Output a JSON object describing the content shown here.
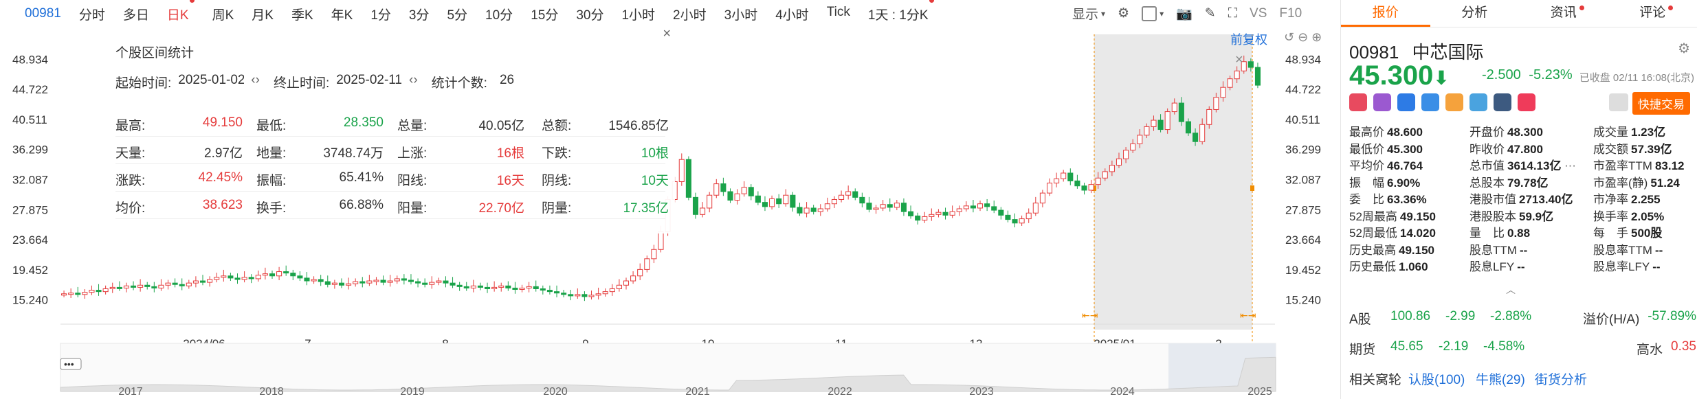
{
  "toolbar": {
    "code": "00981",
    "items": [
      "分时",
      "多日",
      "日K",
      "周K",
      "月K",
      "季K",
      "年K",
      "1分",
      "3分",
      "5分",
      "10分",
      "15分",
      "30分",
      "1小时",
      "2小时",
      "3小时",
      "4小时",
      "Tick",
      "1天 : 1分K"
    ],
    "active_index": 2,
    "display": "显示",
    "vs": "VS",
    "f10": "F10"
  },
  "popup": {
    "title": "个股区间统计",
    "start_label": "起始时间:",
    "start_value": "2025-01-02",
    "end_label": "终止时间:",
    "end_value": "2025-02-11",
    "count_label": "统计个数:",
    "count_value": "26",
    "rows": [
      [
        {
          "l": "最高:",
          "v": "49.150",
          "c": "red"
        },
        {
          "l": "最低:",
          "v": "28.350",
          "c": "green"
        },
        {
          "l": "总量:",
          "v": "40.05亿",
          "c": ""
        },
        {
          "l": "总额:",
          "v": "1546.85亿",
          "c": ""
        }
      ],
      [
        {
          "l": "天量:",
          "v": "2.97亿",
          "c": ""
        },
        {
          "l": "地量:",
          "v": "3748.74万",
          "c": ""
        },
        {
          "l": "上涨:",
          "v": "16根",
          "c": "red"
        },
        {
          "l": "下跌:",
          "v": "10根",
          "c": "green"
        }
      ],
      [
        {
          "l": "涨跌:",
          "v": "42.45%",
          "c": "red"
        },
        {
          "l": "振幅:",
          "v": "65.41%",
          "c": ""
        },
        {
          "l": "阳线:",
          "v": "16天",
          "c": "red"
        },
        {
          "l": "阴线:",
          "v": "10天",
          "c": "green"
        }
      ],
      [
        {
          "l": "均价:",
          "v": "38.623",
          "c": "red"
        },
        {
          "l": "换手:",
          "v": "66.88%",
          "c": ""
        },
        {
          "l": "阳量:",
          "v": "22.70亿",
          "c": "red"
        },
        {
          "l": "阴量:",
          "v": "17.35亿",
          "c": "green"
        }
      ]
    ]
  },
  "chart_labels": {
    "adjust": "前复权",
    "close_x": "×"
  },
  "chart_data": {
    "type": "candlestick",
    "y_ticks": [
      15.24,
      19.452,
      23.664,
      27.875,
      32.087,
      36.299,
      40.511,
      44.722,
      48.934
    ],
    "x_labels": [
      "2024/06",
      "7",
      "8",
      "9",
      "10",
      "11",
      "12",
      "2025/01",
      "2"
    ],
    "overview_years": [
      "2017",
      "2018",
      "2019",
      "2020",
      "2021",
      "2022",
      "2023",
      "2024",
      "2025"
    ],
    "ylim": [
      13.0,
      50.5
    ],
    "closes": [
      16.1,
      16.2,
      16.0,
      16.3,
      16.6,
      16.4,
      16.8,
      17.0,
      16.9,
      17.2,
      17.0,
      17.3,
      17.1,
      16.9,
      17.3,
      17.6,
      17.4,
      17.2,
      17.6,
      17.9,
      17.7,
      18.1,
      18.4,
      18.6,
      18.3,
      18.1,
      18.4,
      18.2,
      18.7,
      18.9,
      18.6,
      19.2,
      19.0,
      18.6,
      18.3,
      17.9,
      18.1,
      17.8,
      17.4,
      17.6,
      17.3,
      17.5,
      17.8,
      17.6,
      17.9,
      18.0,
      17.7,
      17.9,
      18.2,
      18.0,
      17.8,
      17.6,
      17.4,
      17.7,
      17.9,
      17.6,
      17.3,
      17.1,
      16.9,
      17.2,
      17.0,
      16.8,
      17.0,
      17.2,
      16.9,
      16.7,
      16.9,
      17.1,
      16.8,
      16.6,
      16.4,
      16.2,
      16.0,
      15.8,
      16.0,
      15.7,
      15.9,
      16.1,
      16.4,
      16.8,
      17.3,
      17.9,
      18.6,
      19.5,
      21.0,
      22.3,
      24.8,
      29.3,
      31.8,
      34.9,
      29.6,
      27.2,
      28.1,
      29.9,
      31.5,
      30.4,
      29.2,
      30.1,
      31.0,
      29.8,
      28.9,
      28.3,
      29.4,
      28.7,
      29.9,
      28.2,
      27.4,
      28.1,
      27.6,
      28.0,
      28.7,
      29.3,
      29.9,
      30.4,
      29.6,
      28.8,
      27.9,
      28.1,
      28.6,
      28.2,
      28.8,
      27.6,
      27.0,
      26.4,
      26.9,
      27.2,
      27.5,
      27.1,
      27.6,
      28.0,
      28.4,
      28.1,
      28.7,
      28.3,
      27.8,
      27.1,
      26.5,
      26.0,
      26.6,
      27.4,
      28.8,
      30.2,
      31.6,
      32.2,
      33.0,
      31.9,
      31.2,
      30.6,
      31.4,
      32.3,
      33.2,
      34.1,
      35.0,
      36.2,
      37.1,
      38.3,
      39.5,
      40.4,
      39.1,
      41.6,
      42.8,
      40.2,
      38.6,
      37.4,
      39.8,
      41.9,
      43.6,
      45.0,
      46.2,
      47.3,
      48.6,
      47.8,
      45.3
    ],
    "selection": {
      "start": "2025-01-02",
      "end": "2025-02-11"
    }
  },
  "right": {
    "tabs": [
      "报价",
      "分析",
      "资讯",
      "评论"
    ],
    "code": "00981",
    "name": "中芯国际",
    "price": "45.300",
    "change": "-2.500",
    "change_pct": "-5.23%",
    "status": "已收盘 02/11 16:08(北京)",
    "trade": "快捷交易",
    "quote_rows": [
      [
        {
          "l": "最高价",
          "v": "48.600",
          "c": "red"
        },
        {
          "l": "开盘价",
          "v": "48.300",
          "c": "red"
        },
        {
          "l": "成交量",
          "v": "1.23亿",
          "c": ""
        }
      ],
      [
        {
          "l": "最低价",
          "v": "45.300",
          "c": "green"
        },
        {
          "l": "昨收价",
          "v": "47.800",
          "c": ""
        },
        {
          "l": "成交额",
          "v": "57.39亿",
          "c": ""
        }
      ],
      [
        {
          "l": "平均价",
          "v": "46.764",
          "c": "green"
        },
        {
          "l": "总市值",
          "v": "3614.13亿",
          "c": ""
        },
        {
          "l": "市盈率TTM",
          "v": "83.12",
          "c": ""
        }
      ],
      [
        {
          "l": "振　幅",
          "v": "6.90%",
          "c": ""
        },
        {
          "l": "总股本",
          "v": "79.78亿",
          "c": ""
        },
        {
          "l": "市盈率(静)",
          "v": "51.24",
          "c": ""
        }
      ],
      [
        {
          "l": "委　比",
          "v": "63.36%",
          "c": ""
        },
        {
          "l": "港股市值",
          "v": "2713.40亿",
          "c": ""
        },
        {
          "l": "市净率",
          "v": "2.255",
          "c": ""
        }
      ],
      [
        {
          "l": "52周最高",
          "v": "49.150",
          "c": "red"
        },
        {
          "l": "港股股本",
          "v": "59.9亿",
          "c": ""
        },
        {
          "l": "换手率",
          "v": "2.05%",
          "c": ""
        }
      ],
      [
        {
          "l": "52周最低",
          "v": "14.020",
          "c": "green"
        },
        {
          "l": "量　比",
          "v": "0.88",
          "c": ""
        },
        {
          "l": "每　手",
          "v": "500股",
          "c": ""
        }
      ],
      [
        {
          "l": "历史最高",
          "v": "49.150",
          "c": "red"
        },
        {
          "l": "股息TTM",
          "v": "--",
          "c": ""
        },
        {
          "l": "股息率TTM",
          "v": "--",
          "c": ""
        }
      ],
      [
        {
          "l": "历史最低",
          "v": "1.060",
          "c": "green"
        },
        {
          "l": "股息LFY",
          "v": "--",
          "c": ""
        },
        {
          "l": "股息率LFY",
          "v": "--",
          "c": ""
        }
      ]
    ],
    "a_share": {
      "label": "A股",
      "price": "100.86",
      "chg": "-2.99",
      "pct": "-2.88%",
      "premium_label": "溢价(H/A)",
      "premium": "-57.89%"
    },
    "futures": {
      "label": "期货",
      "price": "45.65",
      "chg": "-2.19",
      "pct": "-4.58%",
      "gap_label": "高水",
      "gap": "0.35"
    },
    "warrants": {
      "label": "相关窝轮",
      "a": "认股(100)",
      "b": "牛熊(29)",
      "c": "街货分析"
    }
  }
}
